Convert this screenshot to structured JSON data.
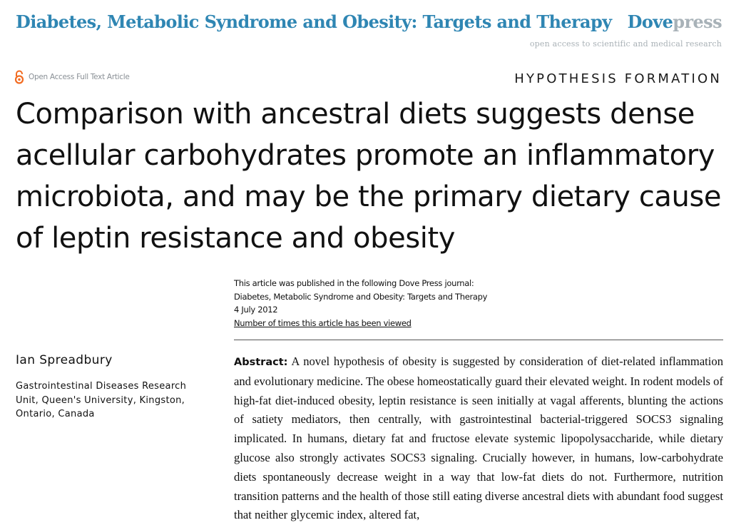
{
  "header": {
    "journal_title": "Diabetes, Metabolic Syndrome and Obesity: Targets and Therapy",
    "brand_dove": "Dove",
    "brand_press": "press",
    "brand_tagline": "open access to scientific and medical research",
    "open_access_label": "Open Access Full Text Article",
    "open_access_icon": "open-access-lock-icon",
    "section_label": "HYPOTHESIS FORMATION"
  },
  "article": {
    "title": "Comparison with ancestral diets suggests dense acellular carbohydrates promote an inflammatory microbiota, and may be the primary dietary cause of leptin resistance and obesity",
    "publication": {
      "line1": "This article was published in the following Dove Press journal:",
      "journal": "Diabetes, Metabolic Syndrome and Obesity: Targets and Therapy",
      "date": "4 July 2012",
      "views_link": "Number of times this article has been viewed"
    },
    "author": "Ian Spreadbury",
    "affiliation": "Gastrointestinal Diseases Research Unit, Queen's University, Kingston, Ontario, Canada",
    "abstract_label": "Abstract:",
    "abstract_text": "A novel hypothesis of obesity is suggested by consideration of diet-related inflammation and evolutionary medicine. The obese homeostatically guard their elevated weight. In rodent models of high-fat diet-induced obesity, leptin resistance is seen initially at vagal afferents, blunting the actions of satiety mediators, then centrally, with gastrointestinal bacterial-triggered SOCS3 signaling implicated. In humans, dietary fat and fructose elevate systemic lipopolysaccharide, while dietary glucose also strongly activates SOCS3 signaling. Crucially however, in humans, low-carbohydrate diets spontaneously decrease weight in a way that low-fat diets do not. Furthermore, nutrition transition patterns and the health of those still eating diverse ancestral diets with abundant food suggest that neither glycemic index, altered fat,"
  },
  "colors": {
    "accent": "#2f86b3",
    "brand_grey": "#a8b2b8",
    "open_access_orange": "#f26b21"
  }
}
